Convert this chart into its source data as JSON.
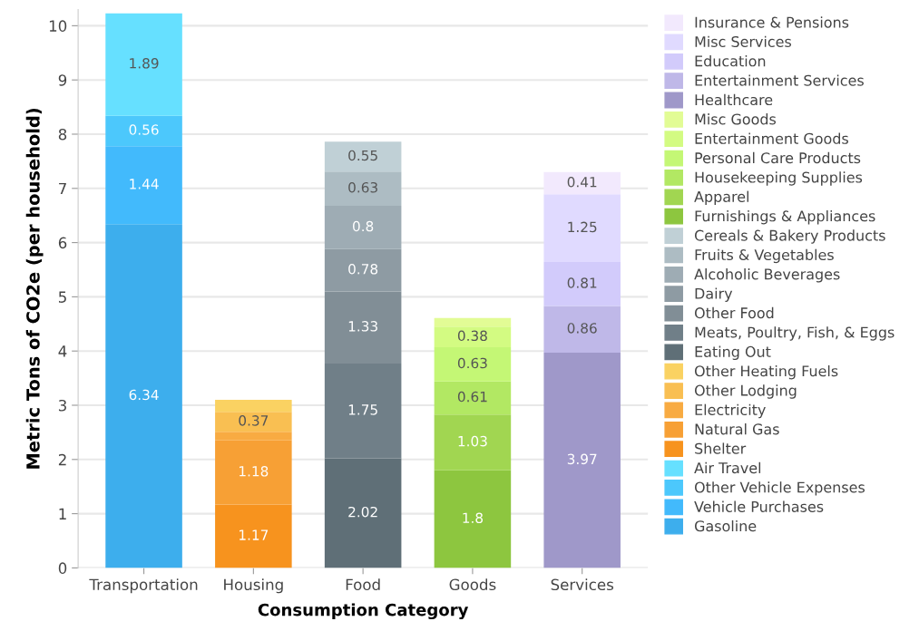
{
  "chart_data": {
    "type": "bar",
    "stacked": true,
    "xlabel": "Consumption Category",
    "ylabel": "Metric Tons of CO2e (per household)",
    "categories": [
      "Transportation",
      "Housing",
      "Food",
      "Goods",
      "Services"
    ],
    "ylim": [
      0,
      10.3
    ],
    "yticks": [
      0,
      1,
      2,
      3,
      4,
      5,
      6,
      7,
      8,
      9,
      10
    ],
    "grid": "y",
    "legend": "right",
    "series": [
      {
        "name": "Gasoline",
        "color": "#3daeed",
        "values": [
          6.34,
          null,
          null,
          null,
          null
        ],
        "value_labels": [
          "6.34",
          null,
          null,
          null,
          null
        ]
      },
      {
        "name": "Vehicle Purchases",
        "color": "#42bafc",
        "values": [
          1.44,
          null,
          null,
          null,
          null
        ],
        "value_labels": [
          "1.44",
          null,
          null,
          null,
          null
        ]
      },
      {
        "name": "Other Vehicle Expenses",
        "color": "#4cc8fc",
        "values": [
          0.56,
          null,
          null,
          null,
          null
        ],
        "value_labels": [
          "0.56",
          null,
          null,
          null,
          null
        ]
      },
      {
        "name": "Air Travel",
        "color": "#66e0ff",
        "values": [
          1.89,
          null,
          null,
          null,
          null
        ],
        "value_labels": [
          "1.89",
          null,
          null,
          null,
          null
        ]
      },
      {
        "name": "Shelter",
        "color": "#f7931e",
        "values": [
          null,
          1.17,
          null,
          null,
          null
        ],
        "value_labels": [
          null,
          "1.17",
          null,
          null,
          null
        ]
      },
      {
        "name": "Natural Gas",
        "color": "#f7a035",
        "values": [
          null,
          1.18,
          null,
          null,
          null
        ],
        "value_labels": [
          null,
          "1.18",
          null,
          null,
          null
        ]
      },
      {
        "name": "Electricity",
        "color": "#f8ab42",
        "values": [
          null,
          0.16,
          null,
          null,
          null
        ],
        "value_labels": [
          null,
          null,
          null,
          null,
          null
        ]
      },
      {
        "name": "Other Lodging",
        "color": "#f9bf52",
        "values": [
          null,
          0.37,
          null,
          null,
          null
        ],
        "value_labels": [
          null,
          "0.37",
          null,
          null,
          null
        ]
      },
      {
        "name": "Other Heating Fuels",
        "color": "#fad262",
        "values": [
          null,
          0.22,
          null,
          null,
          null
        ],
        "value_labels": [
          null,
          null,
          null,
          null,
          null
        ]
      },
      {
        "name": "Eating Out",
        "color": "#5f6f77",
        "values": [
          null,
          null,
          2.02,
          null,
          null
        ],
        "value_labels": [
          null,
          null,
          "2.02",
          null,
          null
        ]
      },
      {
        "name": "Meats, Poultry, Fish, & Eggs",
        "color": "#707f88",
        "values": [
          null,
          null,
          1.75,
          null,
          null
        ],
        "value_labels": [
          null,
          null,
          "1.75",
          null,
          null
        ]
      },
      {
        "name": "Other Food",
        "color": "#818e96",
        "values": [
          null,
          null,
          1.33,
          null,
          null
        ],
        "value_labels": [
          null,
          null,
          "1.33",
          null,
          null
        ]
      },
      {
        "name": "Dairy",
        "color": "#8e9ba3",
        "values": [
          null,
          null,
          0.78,
          null,
          null
        ],
        "value_labels": [
          null,
          null,
          "0.78",
          null,
          null
        ]
      },
      {
        "name": "Alcoholic Beverages",
        "color": "#9eacb4",
        "values": [
          null,
          null,
          0.8,
          null,
          null
        ],
        "value_labels": [
          null,
          null,
          "0.8",
          null,
          null
        ]
      },
      {
        "name": "Fruits & Vegetables",
        "color": "#adbcc3",
        "values": [
          null,
          null,
          0.63,
          null,
          null
        ],
        "value_labels": [
          null,
          null,
          "0.63",
          null,
          null
        ]
      },
      {
        "name": "Cereals & Bakery Products",
        "color": "#c0d0d6",
        "values": [
          null,
          null,
          0.55,
          null,
          null
        ],
        "value_labels": [
          null,
          null,
          "0.55",
          null,
          null
        ]
      },
      {
        "name": "Furnishings & Appliances",
        "color": "#8dc63f",
        "values": [
          null,
          null,
          null,
          1.8,
          null
        ],
        "value_labels": [
          null,
          null,
          null,
          "1.8",
          null
        ]
      },
      {
        "name": "Apparel",
        "color": "#a1d651",
        "values": [
          null,
          null,
          null,
          1.03,
          null
        ],
        "value_labels": [
          null,
          null,
          null,
          "1.03",
          null
        ]
      },
      {
        "name": "Housekeeping Supplies",
        "color": "#b2e863",
        "values": [
          null,
          null,
          null,
          0.61,
          null
        ],
        "value_labels": [
          null,
          null,
          null,
          "0.61",
          null
        ]
      },
      {
        "name": "Personal Care Products",
        "color": "#c4f775",
        "values": [
          null,
          null,
          null,
          0.63,
          null
        ],
        "value_labels": [
          null,
          null,
          null,
          "0.63",
          null
        ]
      },
      {
        "name": "Entertainment Goods",
        "color": "#d3fb82",
        "values": [
          null,
          null,
          null,
          0.38,
          null
        ],
        "value_labels": [
          null,
          null,
          null,
          "0.38",
          null
        ]
      },
      {
        "name": "Misc Goods",
        "color": "#e2fc95",
        "values": [
          null,
          null,
          null,
          0.16,
          null
        ],
        "value_labels": [
          null,
          null,
          null,
          null,
          null
        ]
      },
      {
        "name": "Healthcare",
        "color": "#9f98c9",
        "values": [
          null,
          null,
          null,
          null,
          3.97
        ],
        "value_labels": [
          null,
          null,
          null,
          null,
          "3.97"
        ]
      },
      {
        "name": "Entertainment Services",
        "color": "#bfb8e8",
        "values": [
          null,
          null,
          null,
          null,
          0.86
        ],
        "value_labels": [
          null,
          null,
          null,
          null,
          "0.86"
        ]
      },
      {
        "name": "Education",
        "color": "#d2cbfb",
        "values": [
          null,
          null,
          null,
          null,
          0.81
        ],
        "value_labels": [
          null,
          null,
          null,
          null,
          "0.81"
        ]
      },
      {
        "name": "Misc Services",
        "color": "#e0daff",
        "values": [
          null,
          null,
          null,
          null,
          1.25
        ],
        "value_labels": [
          null,
          null,
          null,
          null,
          "1.25"
        ]
      },
      {
        "name": "Insurance & Pensions",
        "color": "#f2e9fd",
        "values": [
          null,
          null,
          null,
          null,
          0.41
        ],
        "value_labels": [
          null,
          null,
          null,
          null,
          "0.41"
        ]
      }
    ]
  }
}
